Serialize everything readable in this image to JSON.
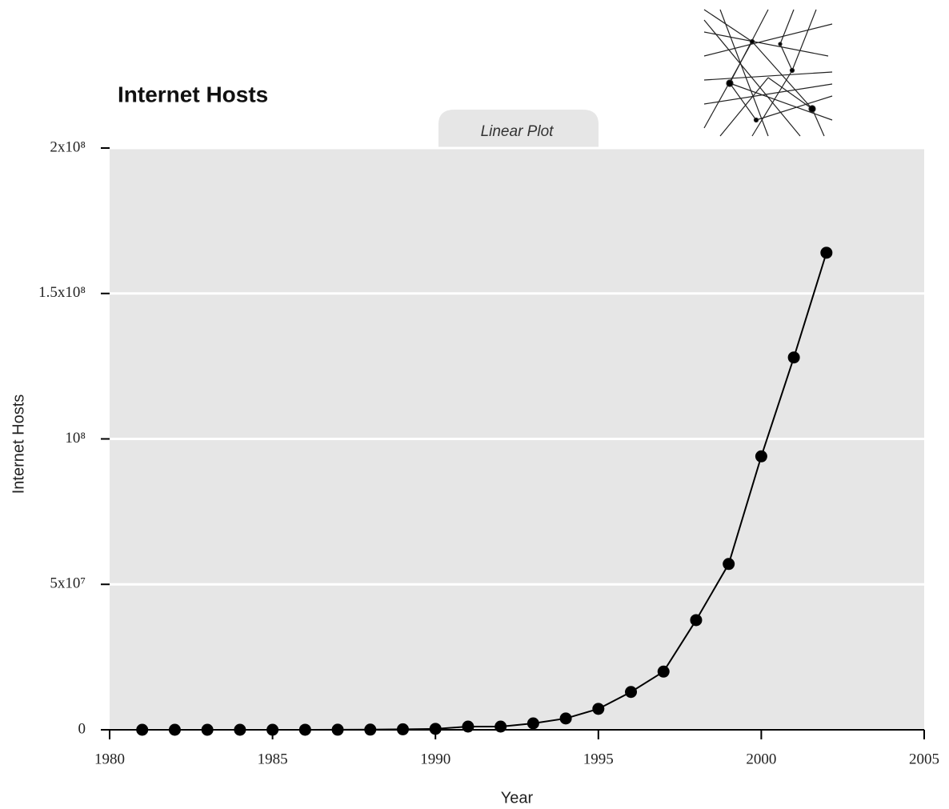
{
  "chart_data": {
    "type": "line",
    "title": "Internet Hosts",
    "annotation": "Linear Plot",
    "x_label": "Year",
    "y_label": "Internet Hosts",
    "x": [
      1981,
      1982,
      1983,
      1984,
      1985,
      1986,
      1987,
      1988,
      1989,
      1990,
      1991,
      1992,
      1993,
      1994,
      1995,
      1996,
      1997,
      1998,
      1999,
      2000,
      2001,
      2002
    ],
    "series": [
      {
        "name": "Internet Hosts",
        "color": "#000000",
        "values": [
          213,
          235,
          562,
          1024,
          1961,
          5089,
          28174,
          56000,
          159000,
          313000,
          1100000,
          1100000,
          2200000,
          3900000,
          7200000,
          13000000,
          20000000,
          37700000,
          57000000,
          94000000,
          128000000,
          164000000
        ]
      }
    ],
    "xlim": [
      1980,
      2005
    ],
    "xticks": [
      1980,
      1985,
      1990,
      1995,
      2000,
      2005
    ],
    "ylim": [
      0,
      200000000
    ],
    "yticks": [
      0,
      {
        "value": 50000000,
        "label": "5x10⁷"
      },
      {
        "value": 100000000,
        "label": "10⁸"
      },
      {
        "value": 150000000,
        "label": "1.5x10⁸"
      },
      {
        "value": 200000000,
        "label": "2x10⁸"
      }
    ],
    "grid": true
  }
}
